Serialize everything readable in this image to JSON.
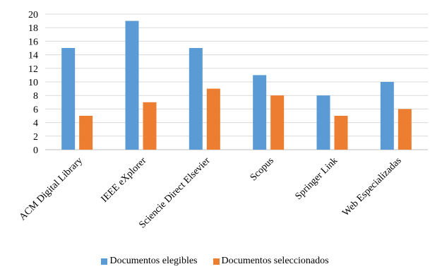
{
  "chart_data": {
    "type": "bar",
    "categories": [
      "ACM Digital Library",
      "IEEE eXplorer",
      "Sciencie Direct Elsevier",
      "Scopus",
      "Springer Link",
      "Web Especializadas"
    ],
    "series": [
      {
        "name": "Documentos elegibles",
        "values": [
          15,
          19,
          15,
          11,
          8,
          10
        ],
        "color": "#5B9BD5"
      },
      {
        "name": "Documentos seleccionados",
        "values": [
          5,
          7,
          9,
          8,
          5,
          6
        ],
        "color": "#ED7D31"
      }
    ],
    "ylim": [
      0,
      20
    ],
    "yticks": [
      0,
      2,
      4,
      6,
      8,
      10,
      12,
      14,
      16,
      18,
      20
    ],
    "grid": true,
    "legend_position": "bottom"
  }
}
